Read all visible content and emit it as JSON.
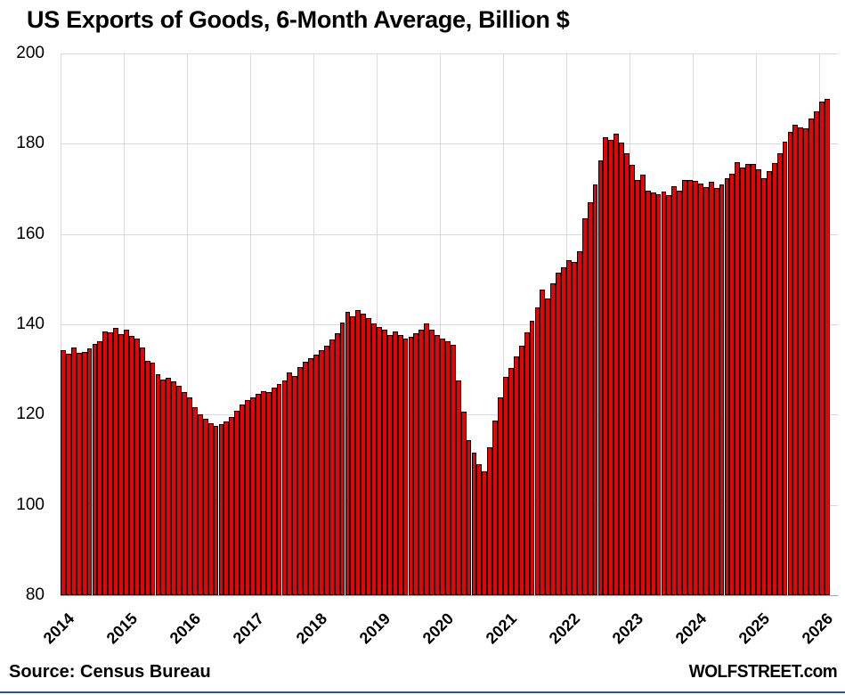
{
  "title": "US Exports of Goods, 6-Month Average, Billion $",
  "footer": {
    "source": "Source: Census Bureau",
    "watermark": "WOLFSTREET.com"
  },
  "colors": {
    "background": "#FFFFFF",
    "bar_fill": "#EE0000",
    "bar_border": "#000000",
    "gridline": "#D9D9D9",
    "baseline": "#A6A6A6",
    "text": "#000000",
    "bottom_rule": "#2F5496"
  },
  "chart_data": {
    "type": "bar",
    "title": "US Exports of Goods, 6-Month Average, Billion $",
    "unit": "Billion $",
    "ylim": [
      80,
      200
    ],
    "yticks": [
      80,
      100,
      120,
      140,
      160,
      180,
      200
    ],
    "xticks": [
      "2014",
      "2015",
      "2016",
      "2017",
      "2018",
      "2019",
      "2020",
      "2021",
      "2022",
      "2023",
      "2024",
      "2025",
      "2026"
    ],
    "grid": true,
    "legend": "none",
    "x": [
      "2014-01",
      "2014-02",
      "2014-03",
      "2014-04",
      "2014-05",
      "2014-06",
      "2014-07",
      "2014-08",
      "2014-09",
      "2014-10",
      "2014-11",
      "2014-12",
      "2015-01",
      "2015-02",
      "2015-03",
      "2015-04",
      "2015-05",
      "2015-06",
      "2015-07",
      "2015-08",
      "2015-09",
      "2015-10",
      "2015-11",
      "2015-12",
      "2016-01",
      "2016-02",
      "2016-03",
      "2016-04",
      "2016-05",
      "2016-06",
      "2016-07",
      "2016-08",
      "2016-09",
      "2016-10",
      "2016-11",
      "2016-12",
      "2017-01",
      "2017-02",
      "2017-03",
      "2017-04",
      "2017-05",
      "2017-06",
      "2017-07",
      "2017-08",
      "2017-09",
      "2017-10",
      "2017-11",
      "2017-12",
      "2018-01",
      "2018-02",
      "2018-03",
      "2018-04",
      "2018-05",
      "2018-06",
      "2018-07",
      "2018-08",
      "2018-09",
      "2018-10",
      "2018-11",
      "2018-12",
      "2019-01",
      "2019-02",
      "2019-03",
      "2019-04",
      "2019-05",
      "2019-06",
      "2019-07",
      "2019-08",
      "2019-09",
      "2019-10",
      "2019-11",
      "2019-12",
      "2020-01",
      "2020-02",
      "2020-03",
      "2020-04",
      "2020-05",
      "2020-06",
      "2020-07",
      "2020-08",
      "2020-09",
      "2020-10",
      "2020-11",
      "2020-12",
      "2021-01",
      "2021-02",
      "2021-03",
      "2021-04",
      "2021-05",
      "2021-06",
      "2021-07",
      "2021-08",
      "2021-09",
      "2021-10",
      "2021-11",
      "2021-12",
      "2022-01",
      "2022-02",
      "2022-03",
      "2022-04",
      "2022-05",
      "2022-06",
      "2022-07",
      "2022-08",
      "2022-09",
      "2022-10",
      "2022-11",
      "2022-12",
      "2023-01",
      "2023-02",
      "2023-03",
      "2023-04",
      "2023-05",
      "2023-06",
      "2023-07",
      "2023-08",
      "2023-09",
      "2023-10",
      "2023-11",
      "2023-12",
      "2024-01",
      "2024-02",
      "2024-03",
      "2024-04",
      "2024-05",
      "2024-06",
      "2024-07",
      "2024-08",
      "2024-09",
      "2024-10",
      "2024-11",
      "2024-12",
      "2025-01",
      "2025-02",
      "2025-03",
      "2025-04",
      "2025-05",
      "2025-06",
      "2025-07",
      "2025-08",
      "2025-09",
      "2025-10",
      "2025-11",
      "2025-12",
      "2026-01",
      "2026-02"
    ],
    "values": [
      134.3,
      133.4,
      134.9,
      133.6,
      133.9,
      134.6,
      135.6,
      136.2,
      138.5,
      138.2,
      139.2,
      137.9,
      138.9,
      137.5,
      136.8,
      134.9,
      131.9,
      131.6,
      129.0,
      127.7,
      128.1,
      127.4,
      126.4,
      125.1,
      123.8,
      121.6,
      120.1,
      119.0,
      118.1,
      117.6,
      117.9,
      118.4,
      119.5,
      120.9,
      122.2,
      123.3,
      123.9,
      124.6,
      125.2,
      125.1,
      126.0,
      126.7,
      127.6,
      129.3,
      128.6,
      130.6,
      131.8,
      132.6,
      133.3,
      134.3,
      135.2,
      136.6,
      138.1,
      140.4,
      142.8,
      141.7,
      143.2,
      142.4,
      141.3,
      140.2,
      139.5,
      138.8,
      137.6,
      138.4,
      137.7,
      136.9,
      137.2,
      138.0,
      138.8,
      140.2,
      138.9,
      137.6,
      136.9,
      136.2,
      135.4,
      127.6,
      120.6,
      114.4,
      111.6,
      109.0,
      107.5,
      112.8,
      118.6,
      123.8,
      128.4,
      130.3,
      133.0,
      135.3,
      138.2,
      140.8,
      143.8,
      147.7,
      145.8,
      149.1,
      151.4,
      152.7,
      154.2,
      153.8,
      156.2,
      163.4,
      167.0,
      171.0,
      176.3,
      181.5,
      180.8,
      182.2,
      180.3,
      178.0,
      175.4,
      172.0,
      173.1,
      169.6,
      169.2,
      168.8,
      169.4,
      168.6,
      170.7,
      169.6,
      172.0,
      172.0,
      171.8,
      171.2,
      170.5,
      171.6,
      170.2,
      170.9,
      172.3,
      173.4,
      176.0,
      174.7,
      175.6,
      175.6,
      174.3,
      172.3,
      173.9,
      175.8,
      177.9,
      180.4,
      182.7,
      184.2,
      183.7,
      183.5,
      185.7,
      187.1,
      189.3,
      190.0
    ]
  }
}
